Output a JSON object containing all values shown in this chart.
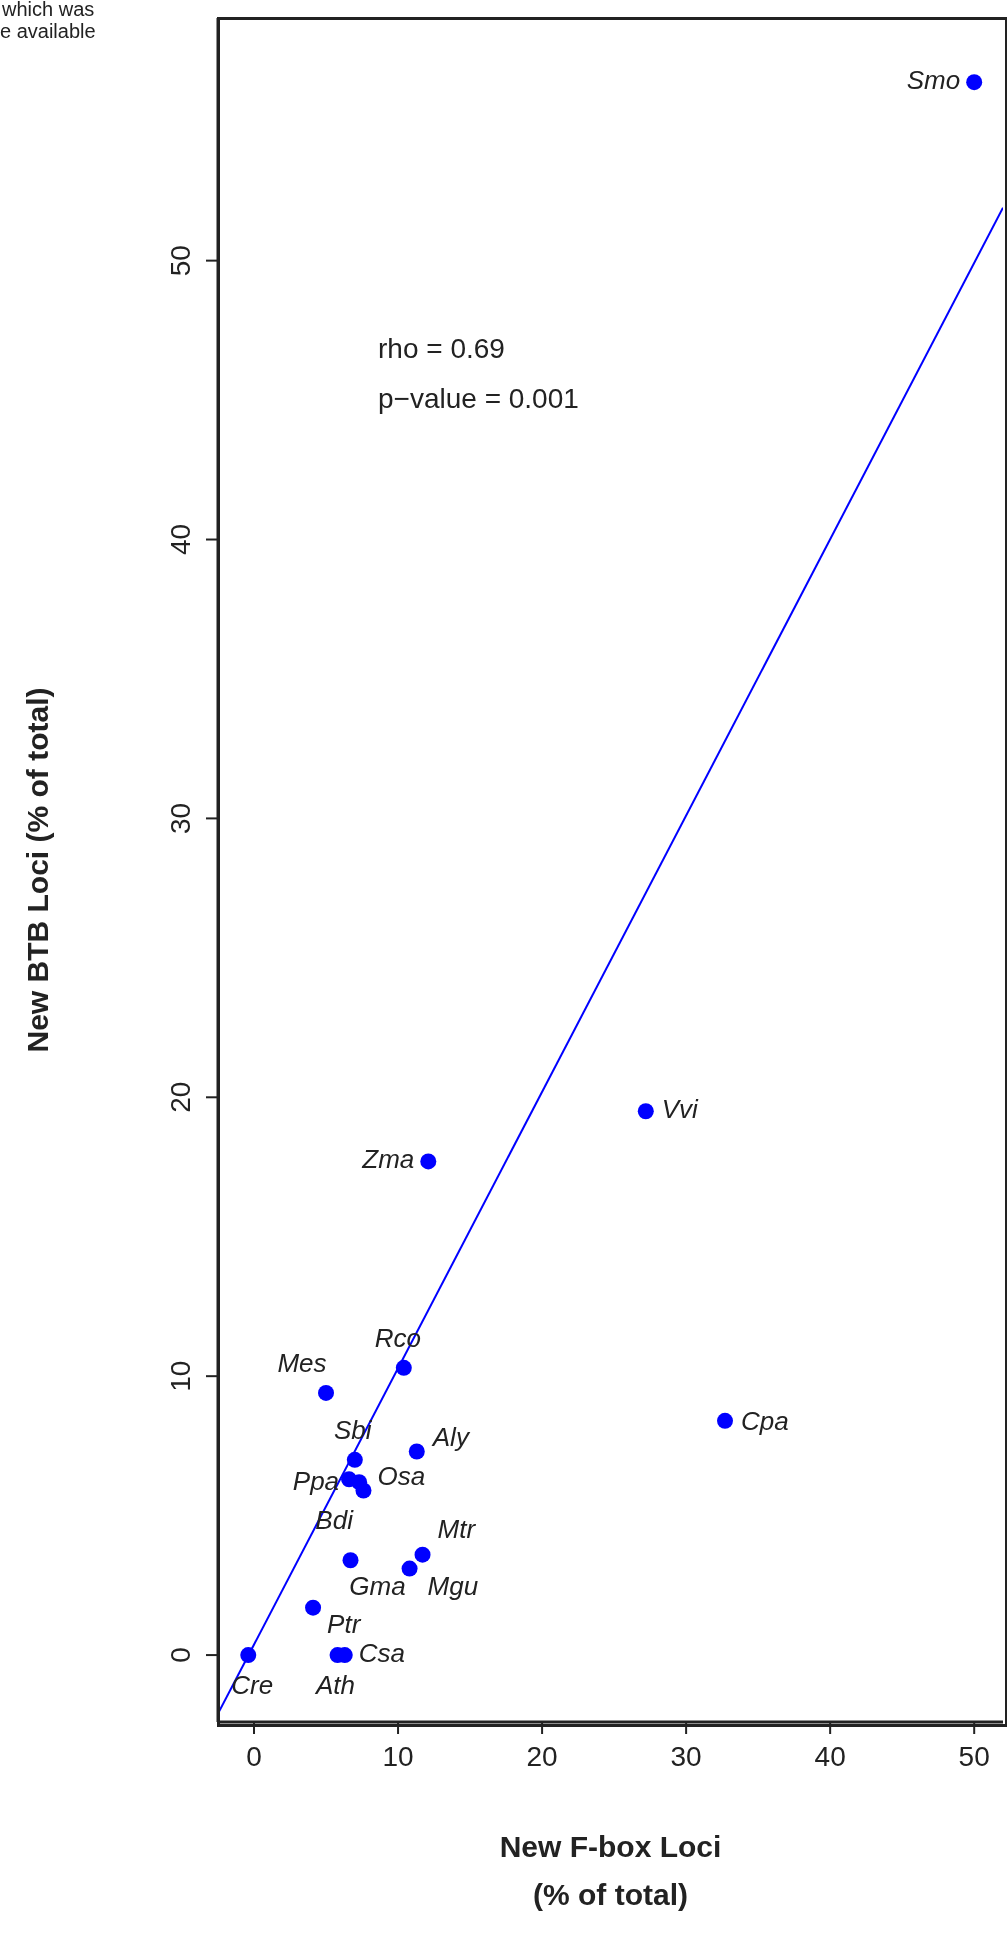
{
  "chart_data": {
    "type": "scatter",
    "xlabel": "New F-box Loci\n(% of total)",
    "ylabel": "New BTB Loci (% of total)",
    "xlim": [
      -2.5,
      52
    ],
    "ylim": [
      -2.4,
      58.7
    ],
    "xticks": [
      0,
      10,
      20,
      30,
      40,
      50
    ],
    "yticks": [
      0,
      10,
      20,
      30,
      40,
      50
    ],
    "grid": false,
    "legend": false,
    "series": [
      {
        "color": "#0000ff",
        "marker": "circle",
        "x": [
          50.0,
          27.2,
          12.1,
          10.4,
          5.0,
          32.7,
          11.3,
          7.0,
          6.6,
          7.3,
          7.6,
          11.7,
          6.7,
          10.8,
          4.1,
          5.8,
          6.3,
          -0.4
        ],
        "values": [
          56.4,
          19.5,
          17.7,
          10.3,
          9.4,
          8.4,
          7.3,
          7.0,
          6.3,
          6.2,
          5.9,
          3.6,
          3.4,
          3.1,
          1.7,
          0,
          0,
          0
        ]
      },
      {
        "type": "line",
        "color": "#0000ff",
        "line_style": "solid",
        "x": [
          -2.5,
          52
        ],
        "values": [
          -2.1,
          51.9
        ]
      }
    ],
    "annotations": [
      "which was",
      "e available",
      "rho = 0.69",
      "p−value = 0.001",
      {
        "text": "Smo",
        "x": 50.0,
        "y": 56.4
      },
      {
        "text": "Vvi",
        "x": 27.2,
        "y": 19.5
      },
      {
        "text": "Zma",
        "x": 12.1,
        "y": 17.7
      },
      {
        "text": "Rco",
        "x": 10.4,
        "y": 10.3
      },
      {
        "text": "Mes",
        "x": 5.0,
        "y": 9.4
      },
      {
        "text": "Cpa",
        "x": 32.7,
        "y": 8.4
      },
      {
        "text": "Aly",
        "x": 11.3,
        "y": 7.3
      },
      {
        "text": "Sbi",
        "x": 7.0,
        "y": 7.0
      },
      {
        "text": "Ppa",
        "x": 6.6,
        "y": 6.3
      },
      {
        "text": "Bdi",
        "x": 7.3,
        "y": 6.2
      },
      {
        "text": "Osa",
        "x": 7.6,
        "y": 5.9
      },
      {
        "text": "Mtr",
        "x": 11.7,
        "y": 3.6
      },
      {
        "text": "Gma",
        "x": 6.7,
        "y": 3.4
      },
      {
        "text": "Mgu",
        "x": 10.8,
        "y": 3.1
      },
      {
        "text": "Ptr",
        "x": 4.1,
        "y": 1.7
      },
      {
        "text": "Ath",
        "x": 5.8,
        "y": 0
      },
      {
        "text": "Csa",
        "x": 6.3,
        "y": 0
      },
      {
        "text": "Cre",
        "x": -0.4,
        "y": 0
      }
    ]
  }
}
